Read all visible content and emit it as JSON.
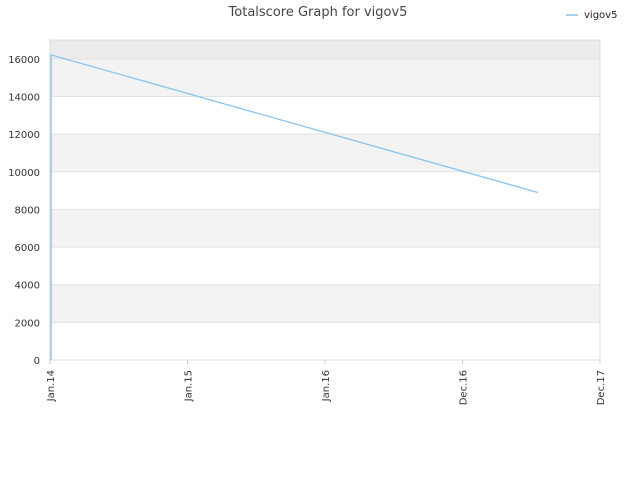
{
  "chart_data": {
    "type": "line",
    "title": "Totalscore Graph for vigov5",
    "xlabel": "",
    "ylabel": "",
    "x_ticks": [
      "Jan.14",
      "Jan.15",
      "Jan.16",
      "Dec.16",
      "Dec.17"
    ],
    "ylim": [
      0,
      17000
    ],
    "y_ticks": [
      0,
      2000,
      4000,
      6000,
      8000,
      10000,
      12000,
      14000,
      16000
    ],
    "grid": "horizontal alternating bands",
    "legend_position": "top-right",
    "series": [
      {
        "name": "vigov5",
        "color": "#88c4ee",
        "points": [
          {
            "x": "2014-01-04",
            "y": 0
          },
          {
            "x": "2014-01-04",
            "y": 16200
          },
          {
            "x": "2014-01-06",
            "y": 16200
          },
          {
            "x": "2017-06-19",
            "y": 8900
          }
        ]
      }
    ]
  }
}
